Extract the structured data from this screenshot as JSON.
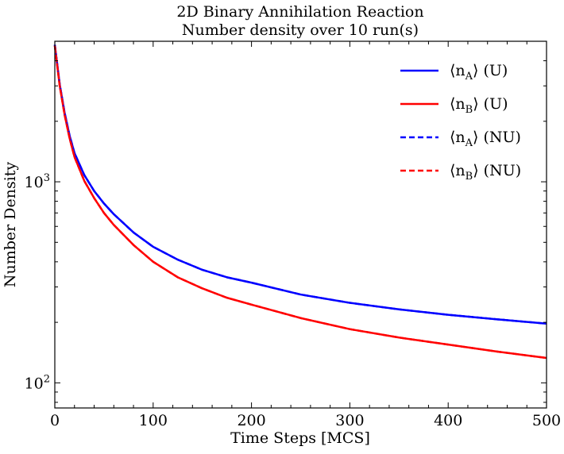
{
  "chart_data": {
    "type": "line",
    "title": "2D Binary Annihilation Reaction",
    "subtitle": "Number density over 10 run(s)",
    "xlabel": "Time Steps [MCS]",
    "ylabel": "Number Density",
    "xlim": [
      0,
      500
    ],
    "ylim": [
      75,
      5000
    ],
    "yscale": "log",
    "xticks": [
      0,
      100,
      200,
      300,
      400,
      500
    ],
    "yticks": [
      {
        "value": 100,
        "base": "10",
        "exp": "2"
      },
      {
        "value": 1000,
        "base": "10",
        "exp": "3"
      }
    ],
    "legend_position": "top-right",
    "series": [
      {
        "name": "⟨n_A⟩ (U)",
        "label_main": "⟨n",
        "label_sub": "A",
        "label_tail": "⟩ (U)",
        "color": "#0000ff",
        "dash": "solid",
        "x": [
          0,
          5,
          10,
          15,
          20,
          30,
          40,
          50,
          60,
          80,
          100,
          125,
          150,
          175,
          200,
          250,
          300,
          350,
          400,
          450,
          500
        ],
        "y": [
          4800,
          3050,
          2200,
          1700,
          1390,
          1080,
          900,
          780,
          690,
          560,
          475,
          410,
          365,
          335,
          315,
          275,
          250,
          232,
          218,
          207,
          197
        ]
      },
      {
        "name": "⟨n_B⟩ (U)",
        "label_main": "⟨n",
        "label_sub": "B",
        "label_tail": "⟩ (U)",
        "color": "#ff0000",
        "dash": "solid",
        "x": [
          0,
          5,
          10,
          15,
          20,
          30,
          40,
          50,
          60,
          80,
          100,
          125,
          150,
          175,
          200,
          250,
          300,
          350,
          400,
          450,
          500
        ],
        "y": [
          4750,
          3000,
          2150,
          1650,
          1330,
          1010,
          830,
          700,
          610,
          485,
          400,
          335,
          295,
          265,
          245,
          210,
          185,
          168,
          155,
          143,
          133
        ]
      },
      {
        "name": "⟨n_A⟩ (NU)",
        "label_main": "⟨n",
        "label_sub": "A",
        "label_tail": "⟩ (NU)",
        "color": "#0000ff",
        "dash": "dashed",
        "x": [
          0,
          5,
          10,
          15,
          20,
          30,
          40,
          50,
          60,
          80,
          100,
          125,
          150,
          175,
          200,
          250,
          300,
          350,
          400,
          450,
          500
        ],
        "y": [
          4800,
          3050,
          2200,
          1700,
          1390,
          1080,
          900,
          780,
          690,
          560,
          475,
          410,
          365,
          335,
          315,
          275,
          250,
          232,
          218,
          207,
          197
        ]
      },
      {
        "name": "⟨n_B⟩ (NU)",
        "label_main": "⟨n",
        "label_sub": "B",
        "label_tail": "⟩ (NU)",
        "color": "#ff0000",
        "dash": "dashed",
        "x": [
          0,
          5,
          10,
          15,
          20,
          30,
          40,
          50,
          60,
          80,
          100,
          125,
          150,
          175,
          200,
          250,
          300,
          350,
          400,
          450,
          500
        ],
        "y": [
          4750,
          3000,
          2150,
          1650,
          1330,
          1010,
          830,
          700,
          610,
          485,
          400,
          335,
          295,
          265,
          245,
          210,
          185,
          168,
          155,
          143,
          133
        ]
      }
    ]
  }
}
